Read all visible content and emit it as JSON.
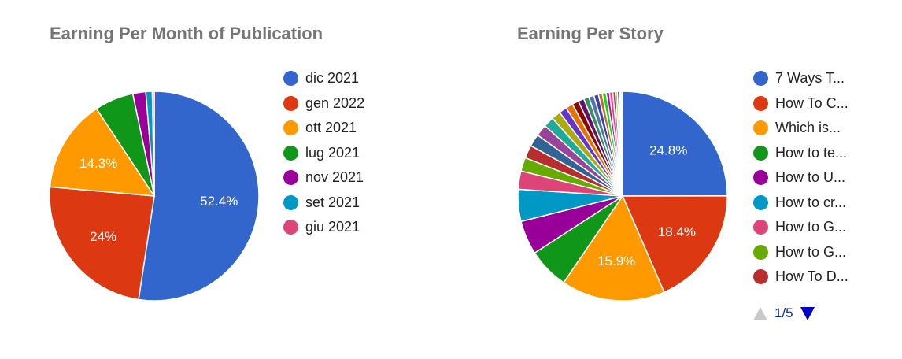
{
  "chart_data": [
    {
      "type": "pie",
      "title": "Earning Per Month of Publication",
      "slices": [
        {
          "label": "dic 2021",
          "value": 52.4,
          "color": "#3366cc",
          "data_label": "52.4%"
        },
        {
          "label": "gen 2022",
          "value": 24.0,
          "color": "#dc3912",
          "data_label": "24%"
        },
        {
          "label": "ott 2021",
          "value": 14.3,
          "color": "#ff9900",
          "data_label": "14.3%"
        },
        {
          "label": "lug 2021",
          "value": 6.0,
          "color": "#109618",
          "data_label": ""
        },
        {
          "label": "nov 2021",
          "value": 2.0,
          "color": "#990099",
          "data_label": ""
        },
        {
          "label": "set 2021",
          "value": 1.0,
          "color": "#0099c6",
          "data_label": ""
        },
        {
          "label": "giu 2021",
          "value": 0.3,
          "color": "#dd4477",
          "data_label": ""
        }
      ],
      "legend": [
        "dic 2021",
        "gen 2022",
        "ott 2021",
        "lug 2021",
        "nov 2021",
        "set 2021",
        "giu 2021"
      ]
    },
    {
      "type": "pie",
      "title": "Earning Per Story",
      "slices": [
        {
          "label": "7 Ways T...",
          "value": 24.8,
          "color": "#3366cc",
          "data_label": "24.8%"
        },
        {
          "label": "How To C...",
          "value": 18.4,
          "color": "#dc3912",
          "data_label": "18.4%"
        },
        {
          "label": "Which is...",
          "value": 15.9,
          "color": "#ff9900",
          "data_label": "15.9%"
        },
        {
          "label": "How to te...",
          "value": 6.3,
          "color": "#109618",
          "data_label": ""
        },
        {
          "label": "How to U...",
          "value": 5.2,
          "color": "#990099",
          "data_label": ""
        },
        {
          "label": "How to cr...",
          "value": 4.9,
          "color": "#0099c6",
          "data_label": ""
        },
        {
          "label": "How to G...",
          "value": 2.8,
          "color": "#dd4477",
          "data_label": ""
        },
        {
          "label": "How to G...",
          "value": 2.1,
          "color": "#66aa00",
          "data_label": ""
        },
        {
          "label": "How To D...",
          "value": 2.0,
          "color": "#b82e2e",
          "data_label": ""
        },
        {
          "label": "",
          "value": 1.9,
          "color": "#316395",
          "data_label": ""
        },
        {
          "label": "",
          "value": 1.8,
          "color": "#994499",
          "data_label": ""
        },
        {
          "label": "",
          "value": 1.6,
          "color": "#22aa99",
          "data_label": ""
        },
        {
          "label": "",
          "value": 1.4,
          "color": "#aaaa11",
          "data_label": ""
        },
        {
          "label": "",
          "value": 1.2,
          "color": "#6633cc",
          "data_label": ""
        },
        {
          "label": "",
          "value": 1.1,
          "color": "#e67300",
          "data_label": ""
        },
        {
          "label": "",
          "value": 1.0,
          "color": "#8b0707",
          "data_label": ""
        },
        {
          "label": "",
          "value": 0.9,
          "color": "#651067",
          "data_label": ""
        },
        {
          "label": "",
          "value": 0.8,
          "color": "#329262",
          "data_label": ""
        },
        {
          "label": "",
          "value": 0.8,
          "color": "#5574a6",
          "data_label": ""
        },
        {
          "label": "",
          "value": 0.7,
          "color": "#3b3eac",
          "data_label": ""
        },
        {
          "label": "",
          "value": 0.6,
          "color": "#b77322",
          "data_label": ""
        },
        {
          "label": "",
          "value": 0.6,
          "color": "#16d620",
          "data_label": ""
        },
        {
          "label": "",
          "value": 0.5,
          "color": "#b91383",
          "data_label": ""
        },
        {
          "label": "",
          "value": 0.5,
          "color": "#f4359e",
          "data_label": ""
        },
        {
          "label": "",
          "value": 0.4,
          "color": "#9c5935",
          "data_label": ""
        },
        {
          "label": "",
          "value": 0.3,
          "color": "#a9c413",
          "data_label": ""
        },
        {
          "label": "",
          "value": 0.3,
          "color": "#2a778d",
          "data_label": ""
        },
        {
          "label": "",
          "value": 0.2,
          "color": "#668d1c",
          "data_label": ""
        },
        {
          "label": "",
          "value": 0.2,
          "color": "#bea413",
          "data_label": ""
        },
        {
          "label": "",
          "value": 0.1,
          "color": "#0c5922",
          "data_label": ""
        }
      ],
      "legend": [
        "7 Ways T...",
        "How To C...",
        "Which is...",
        "How to te...",
        "How to U...",
        "How to cr...",
        "How to G...",
        "How to G...",
        "How To D..."
      ],
      "legend_page": "1/5"
    }
  ]
}
